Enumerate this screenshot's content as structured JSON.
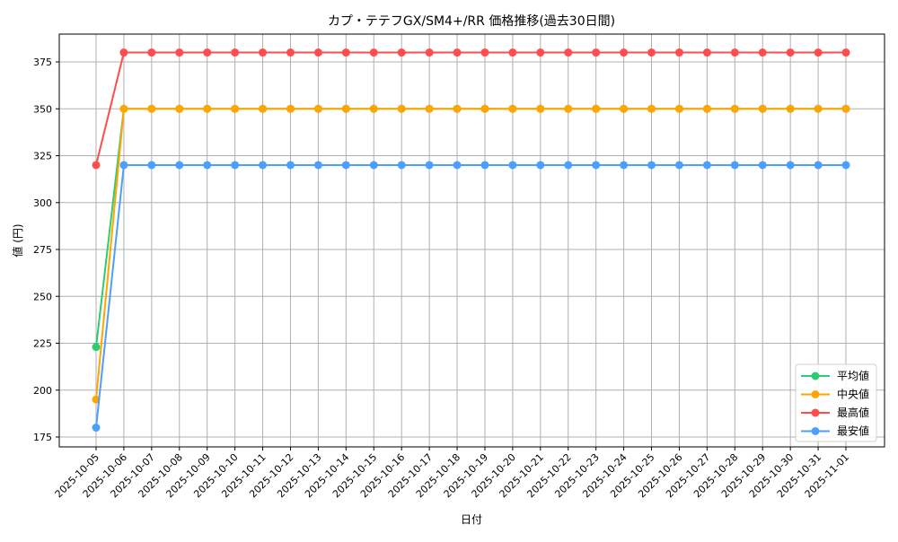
{
  "chart_data": {
    "type": "line",
    "title": "カプ・テテフGX/SM4+/RR 価格推移(過去30日間)",
    "xlabel": "日付",
    "ylabel": "値 (円)",
    "ylim": [
      170,
      390
    ],
    "yticks": [
      175,
      200,
      225,
      250,
      275,
      300,
      325,
      350,
      375
    ],
    "grid": true,
    "legend_position": "lower right",
    "categories": [
      "2025-10-05",
      "2025-10-06",
      "2025-10-07",
      "2025-10-08",
      "2025-10-09",
      "2025-10-10",
      "2025-10-11",
      "2025-10-12",
      "2025-10-13",
      "2025-10-14",
      "2025-10-15",
      "2025-10-16",
      "2025-10-17",
      "2025-10-18",
      "2025-10-19",
      "2025-10-20",
      "2025-10-21",
      "2025-10-22",
      "2025-10-23",
      "2025-10-24",
      "2025-10-25",
      "2025-10-26",
      "2025-10-27",
      "2025-10-28",
      "2025-10-29",
      "2025-10-30",
      "2025-10-31",
      "2025-11-01"
    ],
    "series": [
      {
        "name": "平均値",
        "color": "#2ecc71",
        "values": [
          223,
          350,
          350,
          350,
          350,
          350,
          350,
          350,
          350,
          350,
          350,
          350,
          350,
          350,
          350,
          350,
          350,
          350,
          350,
          350,
          350,
          350,
          350,
          350,
          350,
          350,
          350,
          350
        ]
      },
      {
        "name": "中央値",
        "color": "#ffa500",
        "values": [
          195,
          350,
          350,
          350,
          350,
          350,
          350,
          350,
          350,
          350,
          350,
          350,
          350,
          350,
          350,
          350,
          350,
          350,
          350,
          350,
          350,
          350,
          350,
          350,
          350,
          350,
          350,
          350
        ]
      },
      {
        "name": "最高値",
        "color": "#ff4d4d",
        "values": [
          320,
          380,
          380,
          380,
          380,
          380,
          380,
          380,
          380,
          380,
          380,
          380,
          380,
          380,
          380,
          380,
          380,
          380,
          380,
          380,
          380,
          380,
          380,
          380,
          380,
          380,
          380,
          380
        ]
      },
      {
        "name": "最安値",
        "color": "#4d9fff",
        "values": [
          180,
          320,
          320,
          320,
          320,
          320,
          320,
          320,
          320,
          320,
          320,
          320,
          320,
          320,
          320,
          320,
          320,
          320,
          320,
          320,
          320,
          320,
          320,
          320,
          320,
          320,
          320,
          320
        ]
      }
    ]
  }
}
